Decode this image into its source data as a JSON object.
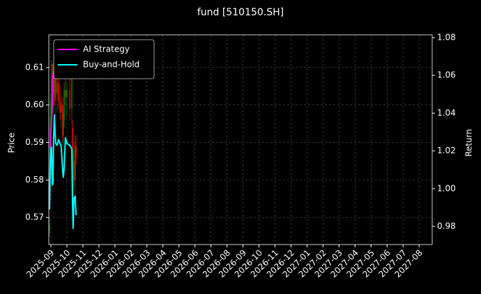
{
  "chart_data": {
    "type": "candlestick",
    "title": "fund [510150.SH]",
    "y_label": "Price",
    "y2_label": "Return",
    "up_color": "#008000",
    "down_color": "#ff0000",
    "grid": true,
    "legend": "upper left",
    "xlim": [
      -0.13,
      23.82
    ],
    "xticks": [
      {
        "value": 0,
        "label": "2025-09"
      },
      {
        "value": 1,
        "label": "2025-10"
      },
      {
        "value": 2,
        "label": "2025-11"
      },
      {
        "value": 3,
        "label": "2025-12"
      },
      {
        "value": 4,
        "label": "2026-01"
      },
      {
        "value": 5,
        "label": "2026-02"
      },
      {
        "value": 6,
        "label": "2026-03"
      },
      {
        "value": 7,
        "label": "2026-04"
      },
      {
        "value": 8,
        "label": "2026-05"
      },
      {
        "value": 9,
        "label": "2026-06"
      },
      {
        "value": 10,
        "label": "2026-07"
      },
      {
        "value": 11,
        "label": "2026-08"
      },
      {
        "value": 12,
        "label": "2026-09"
      },
      {
        "value": 13,
        "label": "2026-10"
      },
      {
        "value": 14,
        "label": "2026-11"
      },
      {
        "value": 15,
        "label": "2026-12"
      },
      {
        "value": 16,
        "label": "2027-01"
      },
      {
        "value": 17,
        "label": "2027-02"
      },
      {
        "value": 18,
        "label": "2027-03"
      },
      {
        "value": 19,
        "label": "2027-04"
      },
      {
        "value": 20,
        "label": "2027-05"
      },
      {
        "value": 21,
        "label": "2027-06"
      },
      {
        "value": 22,
        "label": "2027-07"
      },
      {
        "value": 23,
        "label": "2027-08"
      }
    ],
    "ylim": [
      0.5628,
      0.6187
    ],
    "yticks": [
      0.57,
      0.58,
      0.59,
      {
        "value": 0.6,
        "label": "0.60"
      },
      0.61
    ],
    "y2lim": [
      0.9704,
      1.0815
    ],
    "y2ticks": [
      0.98,
      {
        "value": 1.0,
        "label": "1.00"
      },
      1.02,
      1.04,
      1.06,
      1.08
    ],
    "x": [
      -0.09,
      -0.04,
      0,
      0.04,
      0.09,
      0.13,
      0.17,
      0.22,
      0.26,
      0.3,
      0.39,
      0.48,
      0.57,
      0.65,
      0.74,
      0.78,
      0.83,
      0.91,
      1.0,
      1.18,
      1.31,
      1.35,
      1.39,
      1.44,
      1.52,
      1.57
    ],
    "open": [
      0.566,
      0.585,
      0.594,
      0.601,
      0.608,
      0.6,
      0.609,
      0.605,
      0.602,
      0.607,
      0.603,
      0.606,
      0.601,
      0.598,
      0.6,
      0.592,
      0.596,
      0.604,
      0.602,
      0.604,
      0.599,
      0.594,
      0.583,
      0.585,
      0.58,
      0.589
    ],
    "high": [
      0.57,
      0.597,
      0.603,
      0.612,
      0.611,
      0.611,
      0.612,
      0.61,
      0.609,
      0.61,
      0.608,
      0.609,
      0.605,
      0.603,
      0.602,
      0.598,
      0.606,
      0.607,
      0.606,
      0.608,
      0.609,
      0.596,
      0.588,
      0.59,
      0.592,
      0.592
    ],
    "low": [
      0.565,
      0.583,
      0.592,
      0.599,
      0.598,
      0.598,
      0.603,
      0.6,
      0.597,
      0.601,
      0.598,
      0.599,
      0.596,
      0.594,
      0.59,
      0.589,
      0.594,
      0.6,
      0.597,
      0.596,
      0.595,
      0.58,
      0.576,
      0.578,
      0.576,
      0.584
    ],
    "close": [
      0.568,
      0.594,
      0.601,
      0.608,
      0.6,
      0.609,
      0.605,
      0.602,
      0.607,
      0.603,
      0.606,
      0.601,
      0.598,
      0.6,
      0.592,
      0.596,
      0.604,
      0.602,
      0.604,
      0.599,
      0.607,
      0.583,
      0.585,
      0.58,
      0.589,
      0.586
    ],
    "series": [
      {
        "name": "AI Strategy",
        "color": "#ff00ff",
        "axis": "y2",
        "values": [
          0.989,
          1.015,
          1.03,
          1.035,
          1.045,
          1.06,
          1.062,
          1.06,
          null,
          null,
          null,
          null,
          null,
          null,
          null,
          null,
          null,
          null,
          null,
          null,
          null,
          null,
          null,
          null,
          null,
          null
        ]
      },
      {
        "name": "Buy-and-Hold",
        "color": "#00ffff",
        "axis": "y2",
        "values": [
          0.989,
          1.011,
          1.021,
          1.022,
          1.002,
          1.003,
          1.026,
          1.039,
          1.03,
          1.024,
          1.023,
          1.026,
          1.024,
          1.022,
          1.009,
          1.006,
          1.011,
          1.027,
          1.024,
          1.023,
          1.021,
          0.993,
          0.979,
          0.995,
          0.996,
          0.986
        ]
      }
    ]
  }
}
